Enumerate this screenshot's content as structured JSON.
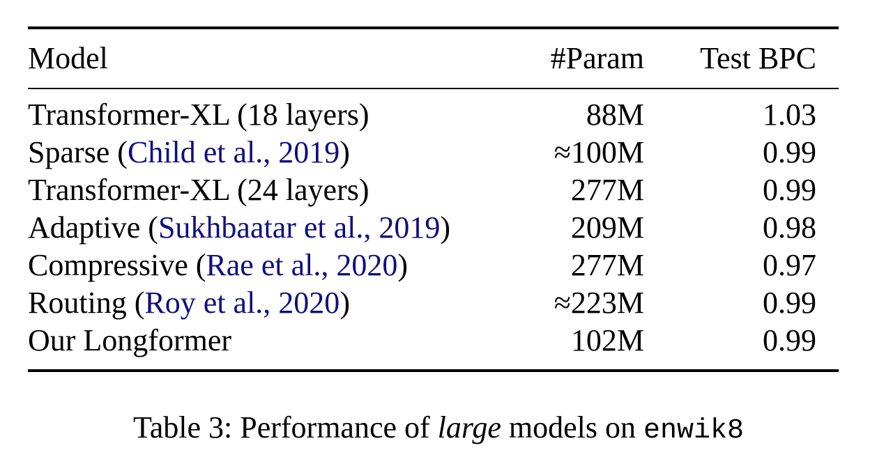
{
  "table": {
    "headers": [
      "Model",
      "#Param",
      "Test BPC"
    ],
    "rows": [
      {
        "model_prefix": "Transformer-XL (18 layers)",
        "cite": "",
        "model_suffix": "",
        "params": "88M",
        "bpc": "1.03"
      },
      {
        "model_prefix": "Sparse (",
        "cite": "Child et al., 2019",
        "model_suffix": ")",
        "params": "≈100M",
        "bpc": "0.99"
      },
      {
        "model_prefix": "Transformer-XL (24 layers)",
        "cite": "",
        "model_suffix": "",
        "params": "277M",
        "bpc": "0.99"
      },
      {
        "model_prefix": "Adaptive (",
        "cite": "Sukhbaatar et al., 2019",
        "model_suffix": ")",
        "params": "209M",
        "bpc": "0.98"
      },
      {
        "model_prefix": "Compressive (",
        "cite": "Rae et al., 2020",
        "model_suffix": ")",
        "params": "277M",
        "bpc": "0.97"
      },
      {
        "model_prefix": "Routing (",
        "cite": "Roy et al., 2020",
        "model_suffix": ")",
        "params": "≈223M",
        "bpc": "0.99"
      },
      {
        "model_prefix": "Our Longformer",
        "cite": "",
        "model_suffix": "",
        "params": "102M",
        "bpc": "0.99"
      }
    ]
  },
  "caption": {
    "label": "Table 3: Performance of ",
    "emph": "large",
    "middle": " models on ",
    "dataset": "enwik8"
  },
  "colors": {
    "citation": "#0f0f7f",
    "text": "#000000"
  }
}
